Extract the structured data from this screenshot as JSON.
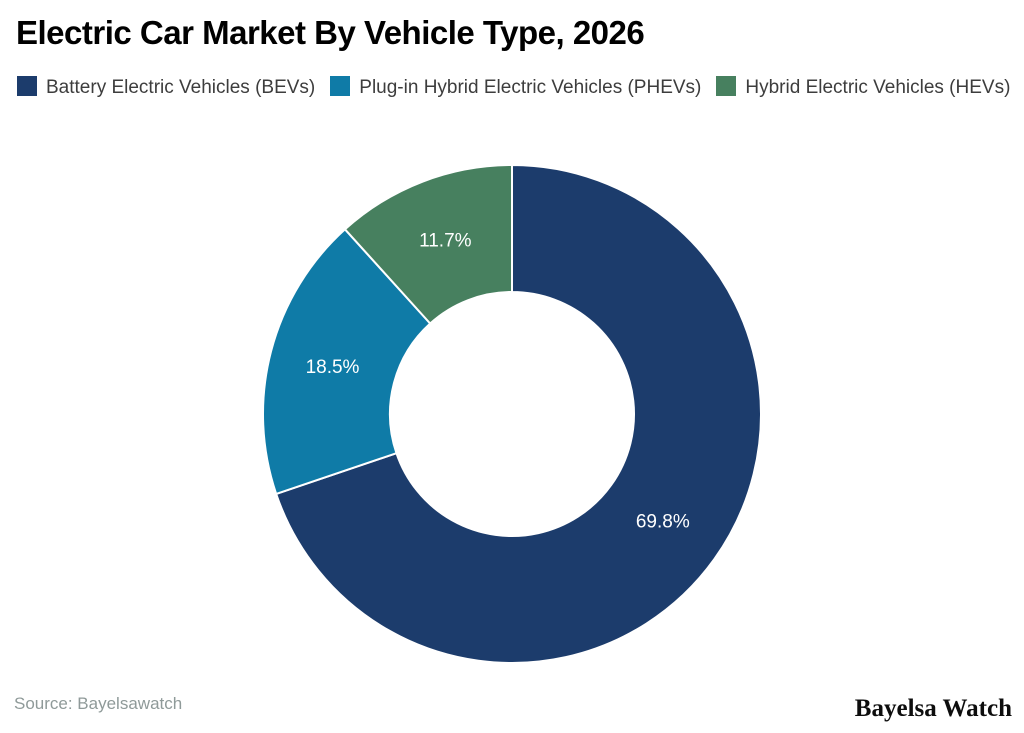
{
  "title": "Electric Car Market By Vehicle Type, 2026",
  "legend": {
    "items": [
      {
        "label": "Battery Electric Vehicles (BEVs)",
        "color": "#1c3c6c"
      },
      {
        "label": "Plug-in Hybrid Electric Vehicles (PHEVs)",
        "color": "#0f7ba7"
      },
      {
        "label": "Hybrid Electric Vehicles (HEVs)",
        "color": "#47805f"
      }
    ]
  },
  "chart_data": {
    "type": "pie",
    "subtype": "donut",
    "title": "Electric Car Market By Vehicle Type, 2026",
    "categories": [
      "Battery Electric Vehicles (BEVs)",
      "Plug-in Hybrid Electric Vehicles (PHEVs)",
      "Hybrid Electric Vehicles (HEVs)"
    ],
    "values": [
      69.8,
      18.5,
      11.7
    ],
    "labels": [
      "69.8%",
      "18.5%",
      "11.7%"
    ],
    "colors": [
      "#1c3c6c",
      "#0f7ba7",
      "#47805f"
    ],
    "start_angle_deg": 0,
    "direction": "clockwise",
    "inner_radius_ratio": 0.49,
    "legend_position": "top",
    "label_color": "#ffffff",
    "slice_divider_color": "#ffffff"
  },
  "footer": {
    "source": "Source: Bayelsawatch",
    "brand": "Bayelsa Watch"
  }
}
